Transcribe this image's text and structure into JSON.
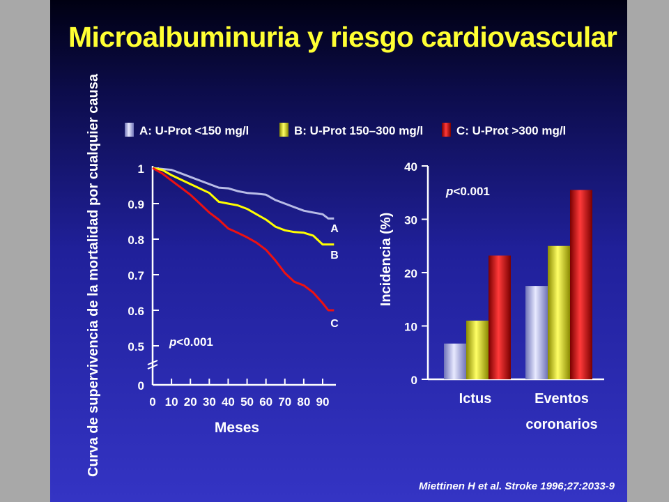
{
  "slide": {
    "title": "Microalbuminuria y riesgo cardiovascular",
    "citation": "Miettinen H et al. Stroke 1996;27:2033-9"
  },
  "legend": [
    {
      "label": "A: U-Prot <150 mg/l",
      "color": "#b8bce6"
    },
    {
      "label": "B: U-Prot 150–300 mg/l",
      "color": "#ffff00"
    },
    {
      "label": "C: U-Prot >300 mg/l",
      "color": "#ee1111"
    }
  ],
  "colors": {
    "background": "#2a2aa8",
    "title": "#ffff33",
    "text": "#ffffff"
  },
  "chart_data": [
    {
      "type": "line",
      "title": "",
      "xlabel": "Meses",
      "ylabel": "Curva de supervivencia de la mortalidad por cualquier causa",
      "x_ticks": [
        0,
        10,
        20,
        30,
        40,
        50,
        60,
        70,
        80,
        90
      ],
      "y_ticks": [
        {
          "value": 0,
          "label": "0"
        },
        {
          "value": 0.5,
          "label": "0.5"
        },
        {
          "value": 0.6,
          "label": "0.6"
        },
        {
          "value": 0.7,
          "label": "0.7"
        },
        {
          "value": 0.8,
          "label": "0.8"
        },
        {
          "value": 0.9,
          "label": "0.9"
        },
        {
          "value": 1,
          "label": "1"
        }
      ],
      "xlim": [
        0,
        96
      ],
      "ylim": [
        0,
        1
      ],
      "y_axis_break": true,
      "annotation": "p<0.001",
      "series": [
        {
          "name": "A",
          "color": "#b8bce6",
          "x": [
            0,
            10,
            15,
            20,
            30,
            35,
            40,
            45,
            50,
            55,
            60,
            65,
            70,
            75,
            80,
            85,
            90,
            93,
            96
          ],
          "y": [
            1.0,
            0.995,
            0.985,
            0.975,
            0.955,
            0.945,
            0.943,
            0.935,
            0.93,
            0.928,
            0.925,
            0.91,
            0.9,
            0.89,
            0.88,
            0.875,
            0.87,
            0.858,
            0.858
          ]
        },
        {
          "name": "B",
          "color": "#ffff00",
          "x": [
            0,
            5,
            10,
            20,
            30,
            35,
            40,
            45,
            50,
            55,
            60,
            65,
            70,
            75,
            80,
            85,
            90,
            93,
            96
          ],
          "y": [
            1.0,
            0.995,
            0.98,
            0.955,
            0.93,
            0.905,
            0.9,
            0.895,
            0.885,
            0.87,
            0.855,
            0.835,
            0.825,
            0.82,
            0.818,
            0.81,
            0.785,
            0.785,
            0.785
          ]
        },
        {
          "name": "C",
          "color": "#ee1111",
          "x": [
            0,
            5,
            10,
            15,
            20,
            25,
            30,
            35,
            40,
            45,
            50,
            55,
            60,
            65,
            70,
            75,
            80,
            85,
            90,
            93,
            96
          ],
          "y": [
            1.0,
            0.985,
            0.965,
            0.945,
            0.925,
            0.9,
            0.875,
            0.855,
            0.83,
            0.818,
            0.805,
            0.79,
            0.77,
            0.74,
            0.705,
            0.68,
            0.67,
            0.65,
            0.62,
            0.6,
            0.6
          ]
        }
      ]
    },
    {
      "type": "bar",
      "title": "",
      "xlabel": "",
      "ylabel": "Incidencia (%)",
      "categories": [
        [
          "Ictus"
        ],
        [
          "Eventos",
          "coronarios"
        ]
      ],
      "y_ticks": [
        0,
        10,
        20,
        30,
        40
      ],
      "ylim": [
        0,
        40
      ],
      "annotation": "p<0.001",
      "series": [
        {
          "name": "A",
          "color": "#b8bce6",
          "values": [
            6.7,
            17.5
          ]
        },
        {
          "name": "B",
          "color": "#ffff00",
          "values": [
            11.0,
            25.0
          ]
        },
        {
          "name": "C",
          "color": "#ee1111",
          "values": [
            23.2,
            35.5
          ]
        }
      ]
    }
  ]
}
